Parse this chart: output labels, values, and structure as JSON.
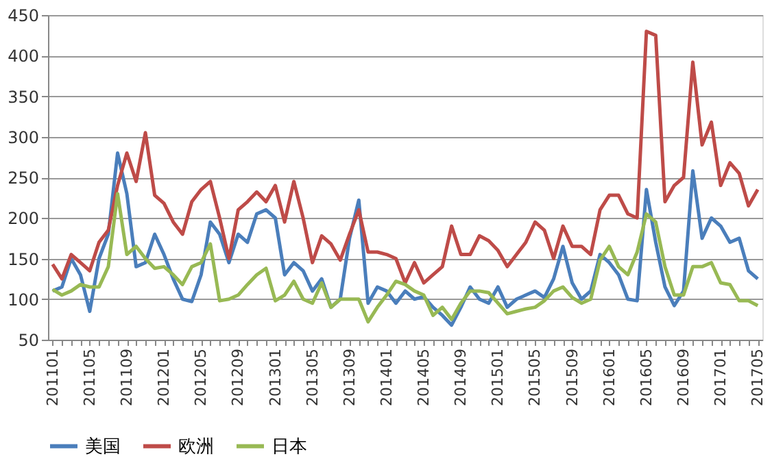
{
  "chart_data": {
    "type": "line",
    "categories": [
      "201101",
      null,
      null,
      null,
      "201105",
      null,
      null,
      null,
      "201109",
      null,
      null,
      null,
      "201201",
      null,
      null,
      null,
      "201205",
      null,
      null,
      null,
      "201209",
      null,
      null,
      null,
      "201301",
      null,
      null,
      null,
      "201305",
      null,
      null,
      null,
      "201309",
      null,
      null,
      null,
      "201401",
      null,
      null,
      null,
      "201405",
      null,
      null,
      null,
      "201409",
      null,
      null,
      null,
      "201501",
      null,
      null,
      null,
      "201505",
      null,
      null,
      null,
      "201509",
      null,
      null,
      null,
      "201601",
      null,
      null,
      null,
      "201605",
      null,
      null,
      null,
      "201609",
      null,
      null,
      null,
      "201701",
      null,
      null,
      null,
      "201705"
    ],
    "series": [
      {
        "name": "美国",
        "color": "#4a7ebb",
        "values": [
          110,
          115,
          150,
          130,
          85,
          150,
          180,
          280,
          230,
          140,
          145,
          180,
          155,
          125,
          100,
          97,
          130,
          195,
          180,
          145,
          180,
          170,
          205,
          210,
          200,
          130,
          145,
          135,
          110,
          125,
          90,
          100,
          175,
          222,
          95,
          115,
          110,
          95,
          110,
          100,
          103,
          90,
          80,
          68,
          90,
          115,
          100,
          95,
          115,
          90,
          100,
          105,
          110,
          102,
          125,
          165,
          120,
          100,
          110,
          155,
          145,
          130,
          100,
          98,
          235,
          170,
          115,
          92,
          110,
          258,
          175,
          200,
          190,
          170,
          175,
          135,
          125
        ]
      },
      {
        "name": "欧洲",
        "color": "#be4b48",
        "values": [
          143,
          125,
          155,
          145,
          135,
          170,
          185,
          240,
          280,
          245,
          305,
          228,
          218,
          195,
          180,
          220,
          235,
          245,
          200,
          150,
          210,
          220,
          232,
          220,
          240,
          195,
          245,
          200,
          145,
          178,
          168,
          148,
          180,
          210,
          158,
          158,
          155,
          150,
          120,
          145,
          120,
          130,
          140,
          190,
          155,
          155,
          178,
          172,
          160,
          140,
          155,
          170,
          195,
          185,
          150,
          190,
          165,
          165,
          155,
          210,
          228,
          228,
          205,
          200,
          430,
          425,
          220,
          240,
          250,
          392,
          290,
          318,
          240,
          268,
          255,
          215,
          235
        ]
      },
      {
        "name": "日本",
        "color": "#98b954",
        "values": [
          112,
          105,
          110,
          118,
          115,
          115,
          140,
          230,
          155,
          165,
          150,
          138,
          140,
          130,
          118,
          140,
          145,
          168,
          98,
          100,
          105,
          118,
          130,
          138,
          98,
          105,
          122,
          100,
          95,
          120,
          90,
          100,
          100,
          100,
          72,
          90,
          105,
          122,
          118,
          110,
          105,
          80,
          90,
          75,
          95,
          110,
          110,
          108,
          95,
          82,
          85,
          88,
          90,
          98,
          110,
          115,
          102,
          95,
          100,
          148,
          165,
          140,
          130,
          158,
          205,
          195,
          140,
          105,
          105,
          140,
          140,
          145,
          120,
          118,
          98,
          98,
          92
        ]
      }
    ],
    "ylim": [
      50,
      450
    ],
    "yticks": [
      50,
      100,
      150,
      200,
      250,
      300,
      350,
      400,
      450
    ],
    "grid": "y",
    "legend": "bottom",
    "marker": "none",
    "line_style": "solid"
  }
}
